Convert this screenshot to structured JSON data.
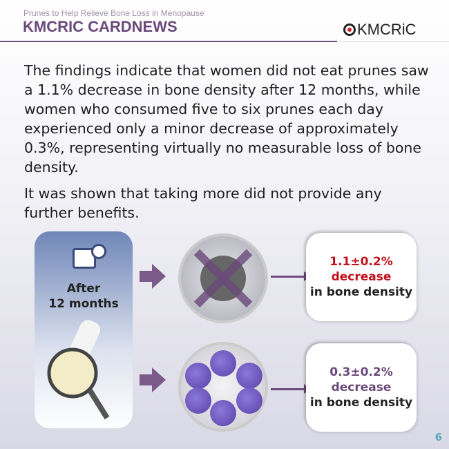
{
  "header": {
    "subtitle": "Prunes to Help Relieve Bone Loss in Menopause",
    "title": "KMCRIC CARDNEWS",
    "logo": "KMCRiC"
  },
  "body": {
    "paragraph1": "The findings indicate that women did not eat prunes saw a 1.1% decrease in bone density after 12 months, while women who consumed five to six prunes each day experienced only a minor decrease of approximately 0.3%, representing virtually no measurable loss of bone density.",
    "paragraph2": "It was shown that taking more did not provide any further benefits."
  },
  "infographic": {
    "time_label": "After\n12 months",
    "no_prunes": {
      "value": "1.1±0.2%",
      "word": "decrease",
      "suffix": "in bone density",
      "color": "#c0141c"
    },
    "prunes": {
      "value": "0.3±0.2%",
      "word": "decrease",
      "suffix": "in bone density",
      "color": "#6a4a7a"
    }
  },
  "page_number": "6"
}
